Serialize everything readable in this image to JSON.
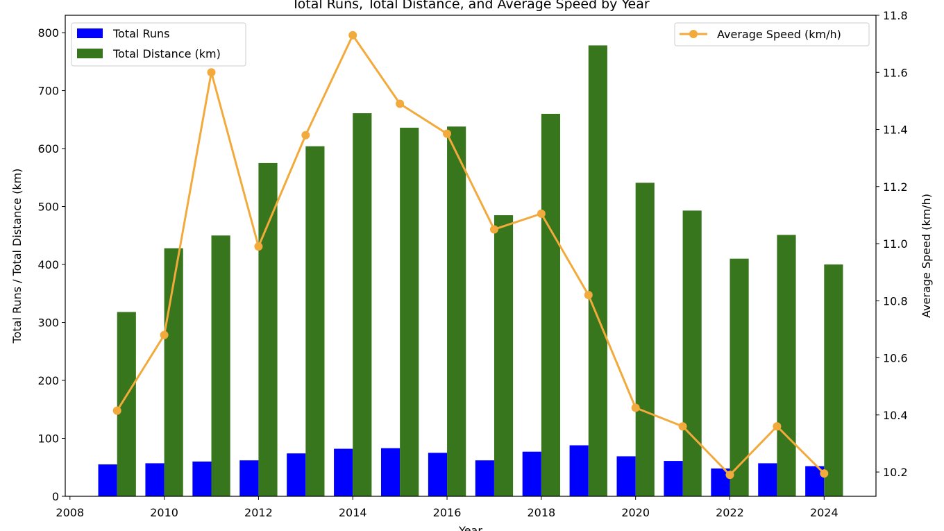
{
  "chart_data": {
    "type": "bar",
    "title": "Total Runs, Total Distance, and Average Speed by Year",
    "xlabel": "Year",
    "ylabel": "Total Runs / Total Distance (km)",
    "y2label": "Average Speed (km/h)",
    "x": [
      2009,
      2010,
      2011,
      2012,
      2013,
      2014,
      2015,
      2016,
      2017,
      2018,
      2019,
      2020,
      2021,
      2022,
      2023,
      2024
    ],
    "xlim": [
      2007.9,
      2025.1
    ],
    "ylim": [
      0,
      830
    ],
    "y2lim": [
      10.115,
      11.8
    ],
    "xticks": [
      "2008",
      "2010",
      "2012",
      "2014",
      "2016",
      "2018",
      "2020",
      "2022",
      "2024"
    ],
    "yticks": [
      "0",
      "100",
      "200",
      "300",
      "400",
      "500",
      "600",
      "700",
      "800"
    ],
    "y2ticks": [
      "10.2",
      "10.4",
      "10.6",
      "10.8",
      "11.0",
      "11.2",
      "11.4",
      "11.6",
      "11.8"
    ],
    "bar_width_years": 0.4,
    "series": [
      {
        "name": "Total Runs",
        "kind": "bar",
        "axis": "left",
        "color": "#0000ff",
        "offset": -0.2,
        "values": [
          55,
          57,
          60,
          62,
          74,
          82,
          83,
          75,
          62,
          77,
          88,
          69,
          61,
          48,
          57,
          52
        ]
      },
      {
        "name": "Total Distance (km)",
        "kind": "bar",
        "axis": "left",
        "color": "#38761d",
        "offset": 0.2,
        "values": [
          318,
          428,
          450,
          575,
          604,
          661,
          636,
          638,
          485,
          660,
          778,
          541,
          493,
          410,
          451,
          400
        ]
      },
      {
        "name": "Average Speed (km/h)",
        "kind": "line",
        "axis": "right",
        "color": "#f1aa3b",
        "values": [
          10.415,
          10.68,
          11.6,
          10.99,
          11.38,
          11.73,
          11.49,
          11.385,
          11.05,
          11.105,
          10.82,
          10.425,
          10.36,
          10.19,
          10.36,
          10.195
        ]
      }
    ],
    "legend_left_placement": "top-left",
    "legend_right_placement": "top-right",
    "grid": false
  }
}
